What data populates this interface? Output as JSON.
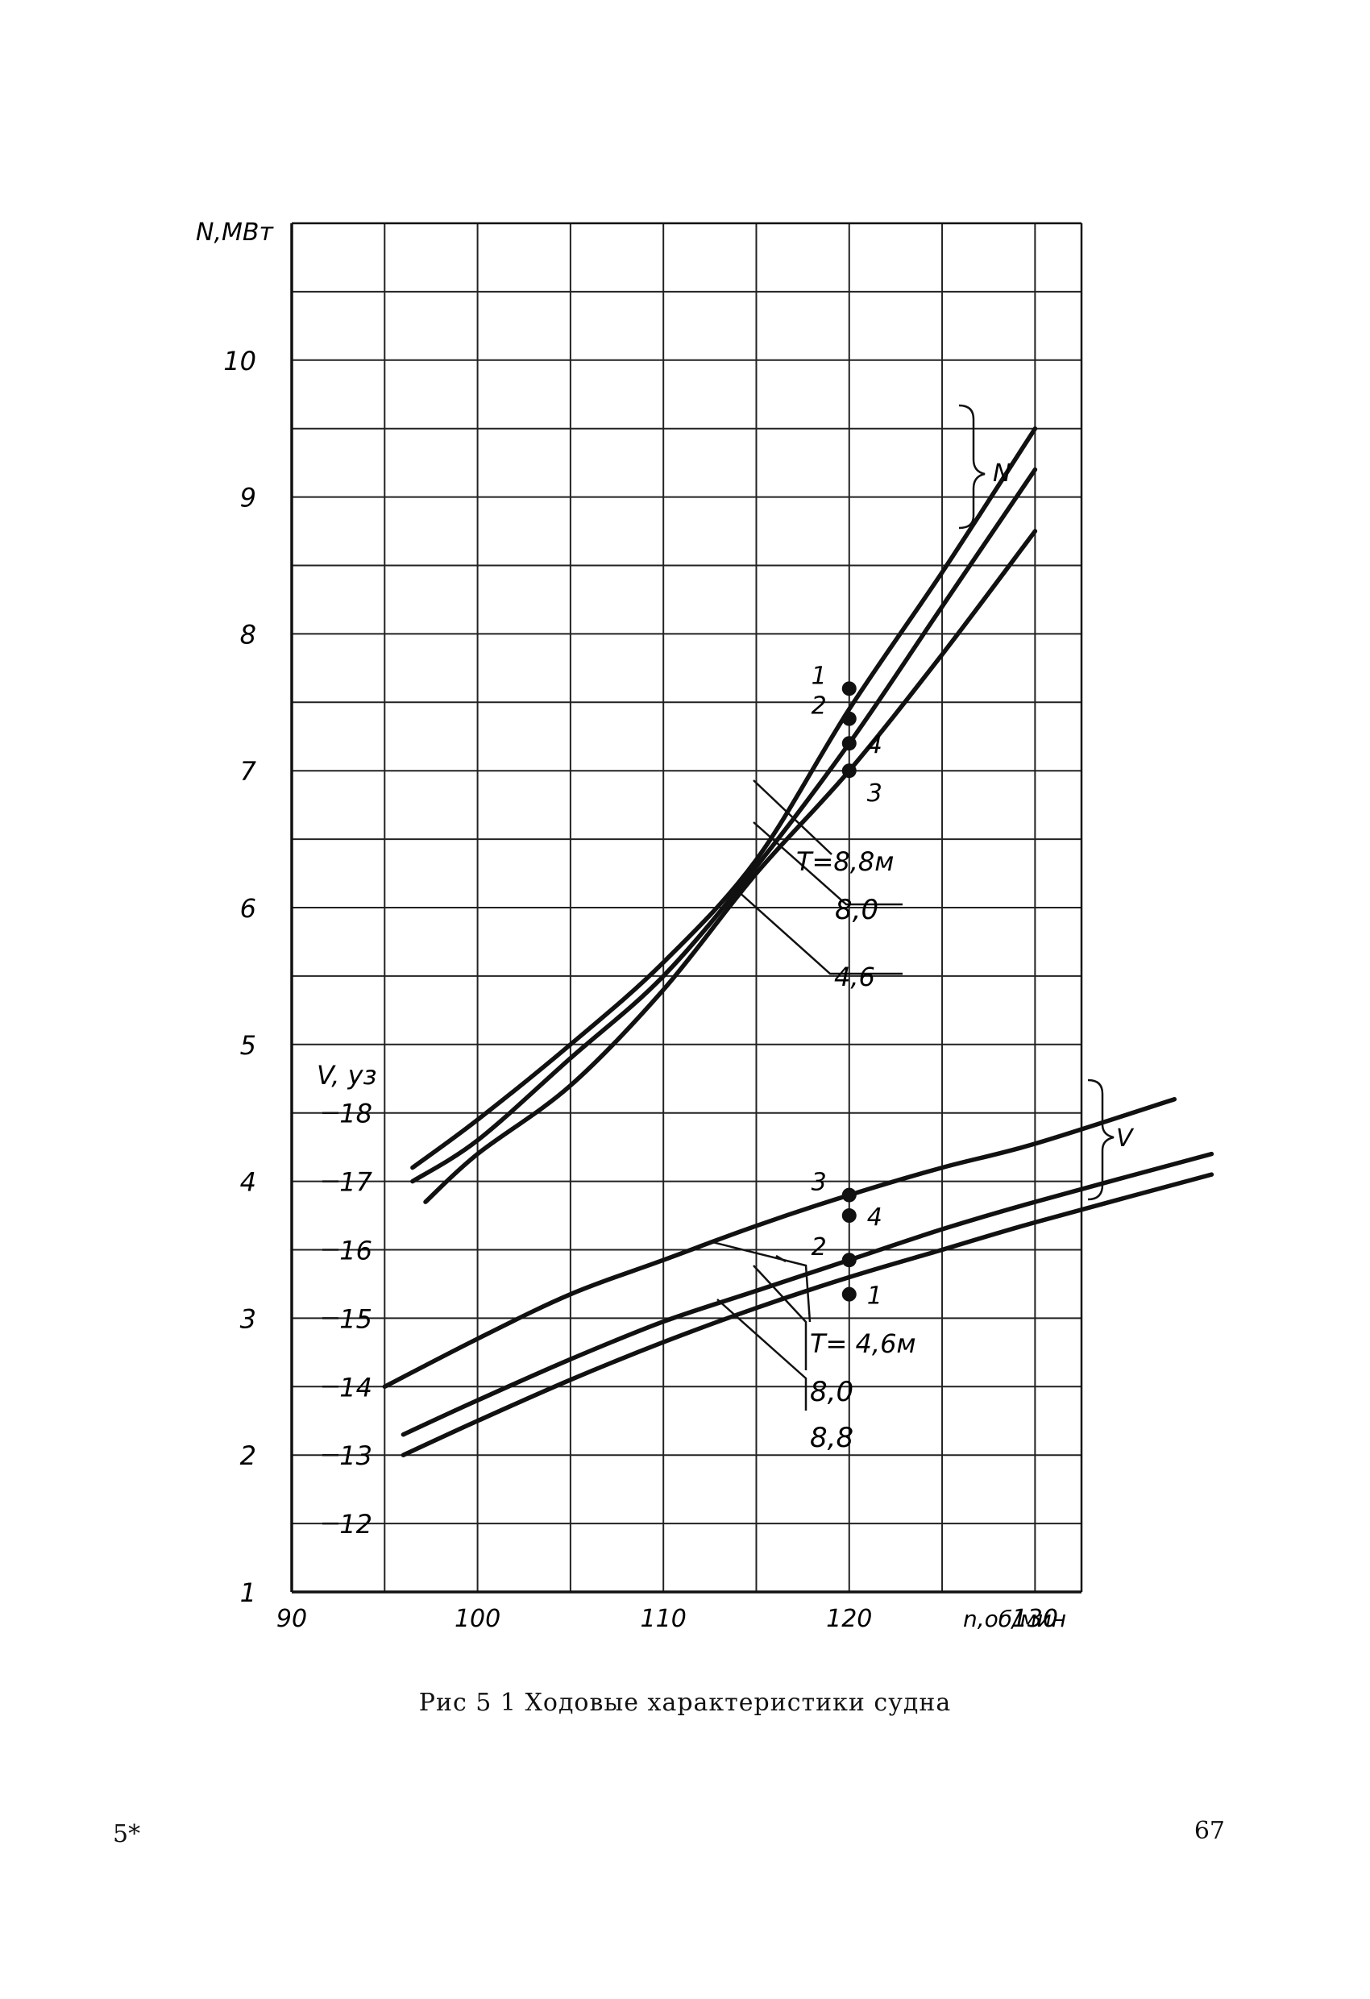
{
  "page": {
    "caption": "Рис 5 1 Ходовые характеристики судна",
    "footer_left": "5*",
    "page_number": "67"
  },
  "chart_data": {
    "type": "line",
    "x_axis": {
      "label": "n,об/мин",
      "range": [
        90,
        132.5
      ],
      "ticks": [
        "90",
        "100",
        "110",
        "120",
        "130"
      ],
      "tick_values": [
        90,
        100,
        110,
        120,
        130
      ]
    },
    "y_axis_power": {
      "label": "N,МВт",
      "range": [
        1,
        11
      ],
      "ticks": [
        "1",
        "2",
        "3",
        "4",
        "5",
        "6",
        "7",
        "8",
        "9",
        "10"
      ],
      "tick_values": [
        1,
        2,
        3,
        4,
        5,
        6,
        7,
        8,
        9,
        10
      ]
    },
    "y_axis_speed": {
      "label": "V, уз",
      "ticks": [
        "12",
        "13",
        "14",
        "15",
        "16",
        "17",
        "18"
      ],
      "tick_values": [
        12,
        13,
        14,
        15,
        16,
        17,
        18
      ],
      "power_equivalent_of_speed_12": 1.5,
      "power_units_per_knot": 0.5
    },
    "grid": true,
    "groups": [
      {
        "group_label": "N",
        "axis": "power",
        "series": [
          {
            "name": "8,8",
            "x": [
              96.5,
              100,
              105,
              110,
              115,
              120,
              125,
              130
            ],
            "y": [
              4.1,
              4.45,
              5.0,
              5.6,
              6.35,
              7.45,
              8.45,
              9.5
            ]
          },
          {
            "name": "8,0",
            "x": [
              96.5,
              100,
              105,
              110,
              115,
              120,
              125,
              130
            ],
            "y": [
              4.0,
              4.3,
              4.9,
              5.5,
              6.3,
              7.2,
              8.2,
              9.2
            ]
          },
          {
            "name": "4,6",
            "x": [
              97.2,
              100,
              105,
              110,
              115,
              120,
              125,
              130
            ],
            "y": [
              3.85,
              4.2,
              4.7,
              5.4,
              6.25,
              7.0,
              7.85,
              8.75
            ]
          }
        ]
      },
      {
        "group_label": "V",
        "axis": "speed",
        "series": [
          {
            "name": "4,6",
            "x": [
              95,
              100,
              105,
              110,
              115,
              120,
              125,
              130,
              137.5
            ],
            "y": [
              14.0,
              14.7,
              15.35,
              15.85,
              16.35,
              16.8,
              17.2,
              17.55,
              18.2
            ]
          },
          {
            "name": "8,0",
            "x": [
              96,
              100,
              105,
              110,
              115,
              120,
              125,
              130,
              139.5
            ],
            "y": [
              13.3,
              13.8,
              14.4,
              14.95,
              15.4,
              15.85,
              16.3,
              16.7,
              17.4
            ]
          },
          {
            "name": "8,8",
            "x": [
              96,
              100,
              105,
              110,
              115,
              120,
              125,
              130,
              139.5
            ],
            "y": [
              13.0,
              13.5,
              14.1,
              14.65,
              15.15,
              15.6,
              16.0,
              16.4,
              17.1
            ]
          }
        ]
      }
    ],
    "marked_points": [
      {
        "label": "1",
        "axis": "power",
        "x": 120,
        "y": 7.6
      },
      {
        "label": "2",
        "axis": "power",
        "x": 120,
        "y": 7.38
      },
      {
        "label": "4",
        "axis": "power",
        "x": 120,
        "y": 7.2
      },
      {
        "label": "3",
        "axis": "power",
        "x": 120,
        "y": 7.0
      },
      {
        "label": "3",
        "axis": "speed",
        "x": 120,
        "y": 16.8
      },
      {
        "label": "4",
        "axis": "speed",
        "x": 120,
        "y": 16.5
      },
      {
        "label": "2",
        "axis": "speed",
        "x": 120,
        "y": 15.85
      },
      {
        "label": "1",
        "axis": "speed",
        "x": 120,
        "y": 15.35
      }
    ],
    "annotations": {
      "power_curves": [
        "T=8,8м",
        "8,0",
        "4,6"
      ],
      "speed_curves": [
        "T= 4,6м",
        "8,0",
        "8,8"
      ],
      "brace_N": "N",
      "brace_V": "V"
    }
  }
}
